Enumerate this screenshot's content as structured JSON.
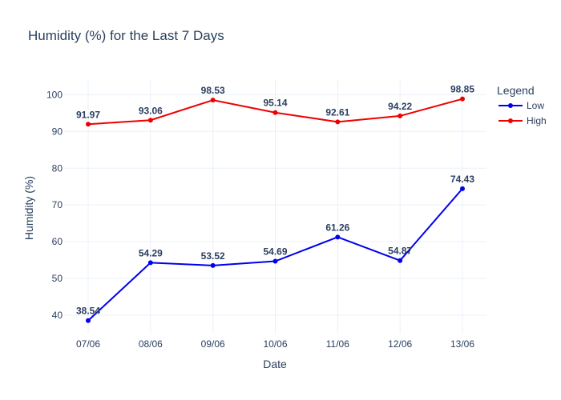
{
  "chart_data": {
    "type": "line",
    "title": "Humidity (%) for the Last 7 Days",
    "xlabel": "Date",
    "ylabel": "Humidity (%)",
    "categories": [
      "07/06",
      "08/06",
      "09/06",
      "10/06",
      "11/06",
      "12/06",
      "13/06"
    ],
    "ylim": [
      35,
      104
    ],
    "yticks": [
      40,
      50,
      60,
      70,
      80,
      90,
      100
    ],
    "grid": true,
    "legend": {
      "title": "Legend",
      "placement": "right"
    },
    "series": [
      {
        "name": "Low",
        "color": "#0000ee",
        "values": [
          38.54,
          54.29,
          53.52,
          54.69,
          61.26,
          54.87,
          74.43
        ]
      },
      {
        "name": "High",
        "color": "#ee0000",
        "values": [
          91.97,
          93.06,
          98.53,
          95.14,
          92.61,
          94.22,
          98.85
        ]
      }
    ]
  }
}
